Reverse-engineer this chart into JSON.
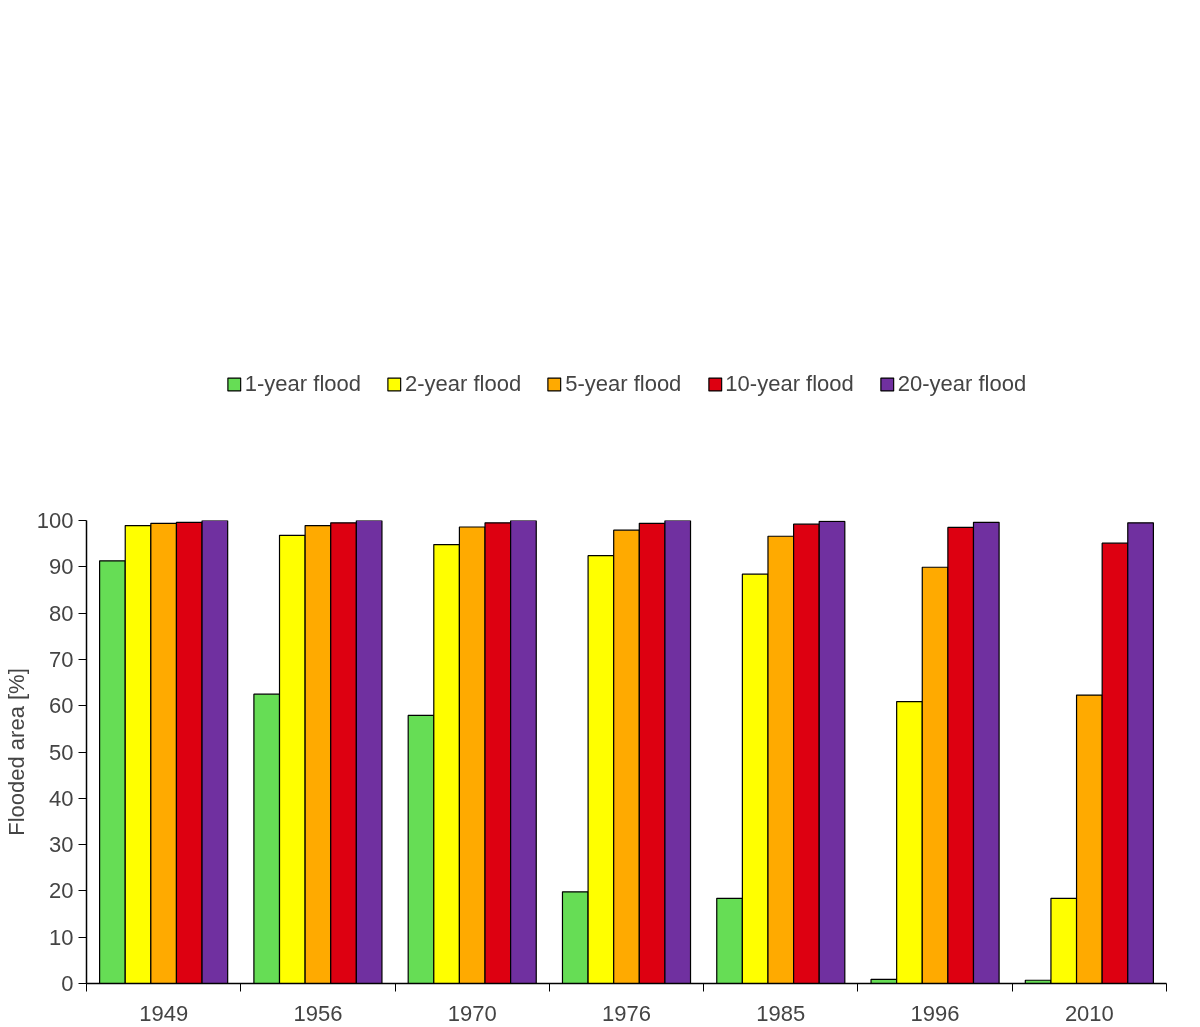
{
  "chart_data": {
    "type": "bar",
    "ylabel": "Flooded area [%]",
    "categories": [
      "1949",
      "1956",
      "1970",
      "1976",
      "1985",
      "1996",
      "2010"
    ],
    "series": [
      {
        "name": "1-year flood",
        "color": "#66dd55",
        "values": [
          91.3,
          62.5,
          57.9,
          19.8,
          18.4,
          0.9,
          0.7
        ]
      },
      {
        "name": "2-year flood",
        "color": "#ffff00",
        "values": [
          98.9,
          96.8,
          94.8,
          92.4,
          88.4,
          60.9,
          18.4
        ]
      },
      {
        "name": "5-year flood",
        "color": "#ffaa00",
        "values": [
          99.4,
          98.9,
          98.6,
          97.9,
          96.6,
          89.9,
          62.3
        ]
      },
      {
        "name": "10-year flood",
        "color": "#dd0011",
        "values": [
          99.6,
          99.5,
          99.5,
          99.4,
          99.2,
          98.5,
          95.1
        ]
      },
      {
        "name": "20-year flood",
        "color": "#7030a0",
        "values": [
          100,
          100,
          100,
          100,
          99.8,
          99.6,
          99.5
        ]
      }
    ],
    "ylim": [
      0,
      100
    ],
    "yticks": [
      0,
      10,
      20,
      30,
      40,
      50,
      60,
      70,
      80,
      90,
      100
    ],
    "grid": false,
    "legend": "top"
  }
}
